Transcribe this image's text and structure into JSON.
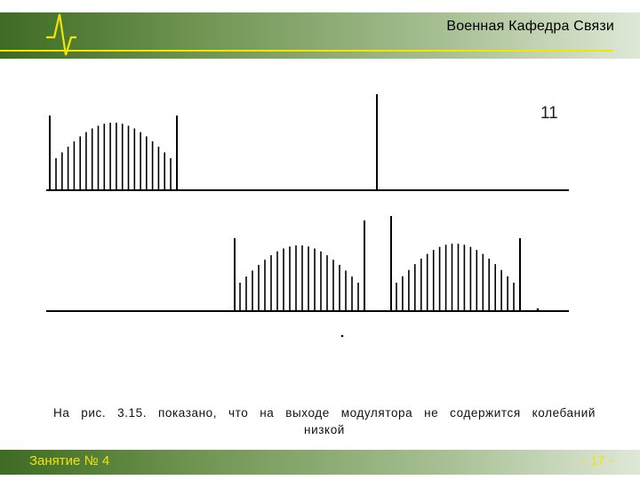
{
  "header": {
    "title": "Военная Кафедра Связи",
    "accent_color": "#f2e600",
    "bar_color": "#3e6b24"
  },
  "figure": {
    "label": "11",
    "icon": "spectrum-diagram"
  },
  "caption": {
    "text": "На  рис. 3.15.  показано,  что  на  выходе  модулятора  не  содержится колебаний  низкой"
  },
  "footer": {
    "lesson": "Занятие № 4",
    "page": "- 17 -"
  }
}
